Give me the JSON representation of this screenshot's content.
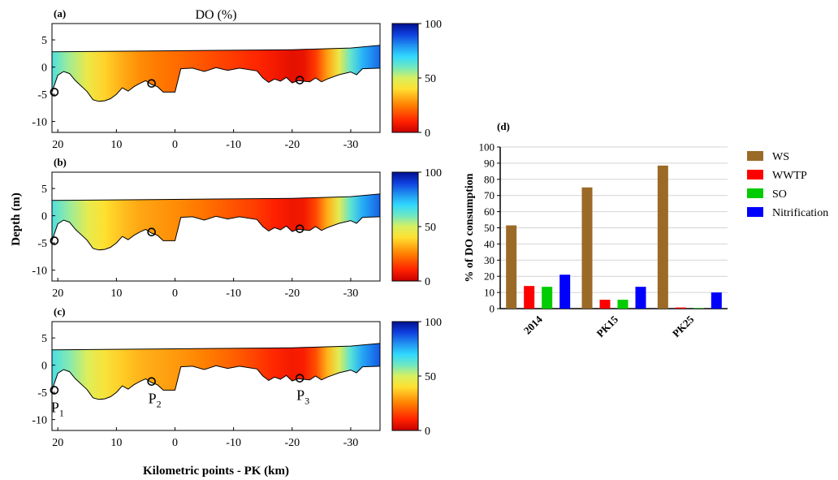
{
  "figure": {
    "title": "DO (%)",
    "ylabel": "Depth (m)",
    "xlabel": "Kilometric points - PK (km)"
  },
  "chart_data": [
    {
      "type": "heatmap",
      "panel_label": "(a)",
      "xlim": [
        21,
        -35
      ],
      "ylim": [
        -12,
        8
      ],
      "x_ticks": [
        "20",
        "10",
        "0",
        "-10",
        "-20",
        "-30"
      ],
      "x_tick_values": [
        20,
        10,
        0,
        -10,
        -20,
        -30
      ],
      "y_ticks": [
        "5",
        "0",
        "-5",
        "-10"
      ],
      "y_tick_values": [
        5,
        0,
        -5,
        -10
      ],
      "colorbar": {
        "min": 0,
        "max": 100,
        "ticks": [
          "100",
          "50",
          "0"
        ],
        "tick_values": [
          100,
          50,
          0
        ]
      },
      "surface_depth": [
        [
          21,
          2.8
        ],
        [
          0,
          3.0
        ],
        [
          -20,
          3.2
        ],
        [
          -30,
          3.5
        ],
        [
          -35,
          4.0
        ]
      ],
      "bed_depth": [
        [
          21,
          -4.6
        ],
        [
          20,
          -1.5
        ],
        [
          19,
          -0.8
        ],
        [
          18,
          -1.2
        ],
        [
          17,
          -2.5
        ],
        [
          15,
          -4.5
        ],
        [
          14,
          -6.0
        ],
        [
          13,
          -6.3
        ],
        [
          12,
          -6.2
        ],
        [
          11,
          -5.8
        ],
        [
          10,
          -5.0
        ],
        [
          9,
          -3.8
        ],
        [
          8,
          -4.4
        ],
        [
          7,
          -3.6
        ],
        [
          6,
          -3.0
        ],
        [
          5,
          -2.5
        ],
        [
          4,
          -3.2
        ],
        [
          3,
          -3.6
        ],
        [
          2,
          -4.6
        ],
        [
          0,
          -4.6
        ],
        [
          -1,
          -0.3
        ],
        [
          -3,
          -0.2
        ],
        [
          -5,
          -0.8
        ],
        [
          -7,
          -0.1
        ],
        [
          -9,
          -0.6
        ],
        [
          -11,
          -0.2
        ],
        [
          -14,
          -0.7
        ],
        [
          -15,
          -2.0
        ],
        [
          -16,
          -2.8
        ],
        [
          -17,
          -2.2
        ],
        [
          -18,
          -2.6
        ],
        [
          -19,
          -1.9
        ],
        [
          -20,
          -2.9
        ],
        [
          -21,
          -2.5
        ],
        [
          -23,
          -2.7
        ],
        [
          -24,
          -2.0
        ],
        [
          -25,
          -2.7
        ],
        [
          -26,
          -2.2
        ],
        [
          -28,
          -1.4
        ],
        [
          -30,
          -0.9
        ],
        [
          -31,
          -1.4
        ],
        [
          -32,
          -0.3
        ],
        [
          -35,
          -0.2
        ]
      ],
      "do_profile": [
        [
          21,
          65
        ],
        [
          18,
          55
        ],
        [
          15,
          45
        ],
        [
          12,
          38
        ],
        [
          9,
          32
        ],
        [
          6,
          27
        ],
        [
          3,
          24
        ],
        [
          0,
          22
        ],
        [
          -5,
          18
        ],
        [
          -10,
          14
        ],
        [
          -14,
          11
        ],
        [
          -17,
          8
        ],
        [
          -20,
          5
        ],
        [
          -22,
          6
        ],
        [
          -24,
          14
        ],
        [
          -26,
          30
        ],
        [
          -28,
          45
        ],
        [
          -30,
          62
        ],
        [
          -32,
          75
        ],
        [
          -35,
          85
        ]
      ],
      "points": [
        {
          "x": 20.6,
          "y": -4.6
        },
        {
          "x": 4.0,
          "y": -3.0
        },
        {
          "x": -21.3,
          "y": -2.4
        }
      ],
      "point_labels": []
    },
    {
      "type": "heatmap",
      "panel_label": "(b)",
      "xlim": [
        21,
        -35
      ],
      "ylim": [
        -12,
        8
      ],
      "x_ticks": [
        "20",
        "10",
        "0",
        "-10",
        "-20",
        "-30"
      ],
      "x_tick_values": [
        20,
        10,
        0,
        -10,
        -20,
        -30
      ],
      "y_ticks": [
        "5",
        "0",
        "-5",
        "-10"
      ],
      "y_tick_values": [
        5,
        0,
        -5,
        -10
      ],
      "colorbar": {
        "min": 0,
        "max": 100,
        "ticks": [
          "100",
          "50",
          "0"
        ],
        "tick_values": [
          100,
          50,
          0
        ]
      },
      "surface_depth": [
        [
          21,
          2.8
        ],
        [
          0,
          3.0
        ],
        [
          -20,
          3.2
        ],
        [
          -30,
          3.5
        ],
        [
          -35,
          4.0
        ]
      ],
      "bed_depth": [
        [
          21,
          -4.6
        ],
        [
          20,
          -1.5
        ],
        [
          19,
          -0.8
        ],
        [
          18,
          -1.2
        ],
        [
          17,
          -2.5
        ],
        [
          15,
          -4.5
        ],
        [
          14,
          -6.0
        ],
        [
          13,
          -6.3
        ],
        [
          12,
          -6.2
        ],
        [
          11,
          -5.8
        ],
        [
          10,
          -5.0
        ],
        [
          9,
          -3.8
        ],
        [
          8,
          -4.4
        ],
        [
          7,
          -3.6
        ],
        [
          6,
          -3.0
        ],
        [
          5,
          -2.5
        ],
        [
          4,
          -3.2
        ],
        [
          3,
          -3.6
        ],
        [
          2,
          -4.6
        ],
        [
          0,
          -4.6
        ],
        [
          -1,
          -0.3
        ],
        [
          -3,
          -0.2
        ],
        [
          -5,
          -0.8
        ],
        [
          -7,
          -0.1
        ],
        [
          -9,
          -0.6
        ],
        [
          -11,
          -0.2
        ],
        [
          -14,
          -0.7
        ],
        [
          -15,
          -2.0
        ],
        [
          -16,
          -2.8
        ],
        [
          -17,
          -2.2
        ],
        [
          -18,
          -2.6
        ],
        [
          -19,
          -1.9
        ],
        [
          -20,
          -2.9
        ],
        [
          -21,
          -2.5
        ],
        [
          -23,
          -2.7
        ],
        [
          -24,
          -2.0
        ],
        [
          -25,
          -2.7
        ],
        [
          -26,
          -2.2
        ],
        [
          -28,
          -1.4
        ],
        [
          -30,
          -0.9
        ],
        [
          -31,
          -1.4
        ],
        [
          -32,
          -0.3
        ],
        [
          -35,
          -0.2
        ]
      ],
      "do_profile": [
        [
          21,
          65
        ],
        [
          18,
          56
        ],
        [
          15,
          47
        ],
        [
          12,
          40
        ],
        [
          9,
          35
        ],
        [
          6,
          31
        ],
        [
          3,
          29
        ],
        [
          0,
          27
        ],
        [
          -5,
          23
        ],
        [
          -10,
          18
        ],
        [
          -14,
          14
        ],
        [
          -17,
          10
        ],
        [
          -20,
          7
        ],
        [
          -22,
          8
        ],
        [
          -24,
          16
        ],
        [
          -26,
          32
        ],
        [
          -28,
          47
        ],
        [
          -30,
          63
        ],
        [
          -32,
          76
        ],
        [
          -35,
          86
        ]
      ],
      "points": [
        {
          "x": 20.6,
          "y": -4.6
        },
        {
          "x": 4.0,
          "y": -3.0
        },
        {
          "x": -21.3,
          "y": -2.4
        }
      ],
      "point_labels": []
    },
    {
      "type": "heatmap",
      "panel_label": "(c)",
      "xlim": [
        21,
        -35
      ],
      "ylim": [
        -12,
        8
      ],
      "x_ticks": [
        "20",
        "10",
        "0",
        "-10",
        "-20",
        "-30"
      ],
      "x_tick_values": [
        20,
        10,
        0,
        -10,
        -20,
        -30
      ],
      "y_ticks": [
        "5",
        "0",
        "-5",
        "-10"
      ],
      "y_tick_values": [
        5,
        0,
        -5,
        -10
      ],
      "colorbar": {
        "min": 0,
        "max": 100,
        "ticks": [
          "100",
          "50",
          "0"
        ],
        "tick_values": [
          100,
          50,
          0
        ]
      },
      "surface_depth": [
        [
          21,
          2.8
        ],
        [
          0,
          3.0
        ],
        [
          -20,
          3.2
        ],
        [
          -30,
          3.5
        ],
        [
          -35,
          4.0
        ]
      ],
      "bed_depth": [
        [
          21,
          -4.6
        ],
        [
          20,
          -1.5
        ],
        [
          19,
          -0.8
        ],
        [
          18,
          -1.2
        ],
        [
          17,
          -2.5
        ],
        [
          15,
          -4.5
        ],
        [
          14,
          -6.0
        ],
        [
          13,
          -6.3
        ],
        [
          12,
          -6.2
        ],
        [
          11,
          -5.8
        ],
        [
          10,
          -5.0
        ],
        [
          9,
          -3.8
        ],
        [
          8,
          -4.4
        ],
        [
          7,
          -3.6
        ],
        [
          6,
          -3.0
        ],
        [
          5,
          -2.5
        ],
        [
          4,
          -3.2
        ],
        [
          3,
          -3.6
        ],
        [
          2,
          -4.6
        ],
        [
          0,
          -4.6
        ],
        [
          -1,
          -0.3
        ],
        [
          -3,
          -0.2
        ],
        [
          -5,
          -0.8
        ],
        [
          -7,
          -0.1
        ],
        [
          -9,
          -0.6
        ],
        [
          -11,
          -0.2
        ],
        [
          -14,
          -0.7
        ],
        [
          -15,
          -2.0
        ],
        [
          -16,
          -2.8
        ],
        [
          -17,
          -2.2
        ],
        [
          -18,
          -2.6
        ],
        [
          -19,
          -1.9
        ],
        [
          -20,
          -2.9
        ],
        [
          -21,
          -2.5
        ],
        [
          -23,
          -2.7
        ],
        [
          -24,
          -2.0
        ],
        [
          -25,
          -2.7
        ],
        [
          -26,
          -2.2
        ],
        [
          -28,
          -1.4
        ],
        [
          -30,
          -0.9
        ],
        [
          -31,
          -1.4
        ],
        [
          -32,
          -0.3
        ],
        [
          -35,
          -0.2
        ]
      ],
      "do_profile": [
        [
          21,
          66
        ],
        [
          18,
          58
        ],
        [
          15,
          49
        ],
        [
          12,
          42
        ],
        [
          9,
          37
        ],
        [
          6,
          33
        ],
        [
          3,
          31
        ],
        [
          0,
          29
        ],
        [
          -5,
          25
        ],
        [
          -10,
          20
        ],
        [
          -14,
          15
        ],
        [
          -17,
          11
        ],
        [
          -20,
          8
        ],
        [
          -22,
          9
        ],
        [
          -24,
          17
        ],
        [
          -26,
          33
        ],
        [
          -28,
          48
        ],
        [
          -30,
          64
        ],
        [
          -32,
          77
        ],
        [
          -35,
          87
        ]
      ],
      "points": [
        {
          "x": 20.6,
          "y": -4.6
        },
        {
          "x": 4.0,
          "y": -3.0
        },
        {
          "x": -21.3,
          "y": -2.4
        }
      ],
      "point_labels": [
        {
          "base": "P",
          "sub": "1"
        },
        {
          "base": "P",
          "sub": "2"
        },
        {
          "base": "P",
          "sub": "3"
        }
      ]
    },
    {
      "type": "bar",
      "panel_label": "(d)",
      "ylabel": "% of DO consumption",
      "ylim": [
        0,
        100
      ],
      "y_ticks": [
        0,
        10,
        20,
        30,
        40,
        50,
        60,
        70,
        80,
        90,
        100
      ],
      "grid": true,
      "legend_position": "right",
      "categories": [
        "2014",
        "PK15",
        "PK25"
      ],
      "series": [
        {
          "name": "WS",
          "color": "#9b6a27",
          "values": [
            51.5,
            75,
            88.5
          ]
        },
        {
          "name": "WWTP",
          "color": "#ff0000",
          "values": [
            14,
            5.5,
            0.7
          ]
        },
        {
          "name": "SO",
          "color": "#00cc00",
          "values": [
            13.5,
            5.5,
            0.3
          ]
        },
        {
          "name": "Nitrification",
          "color": "#0000ff",
          "values": [
            21,
            13.5,
            10
          ]
        }
      ]
    }
  ]
}
